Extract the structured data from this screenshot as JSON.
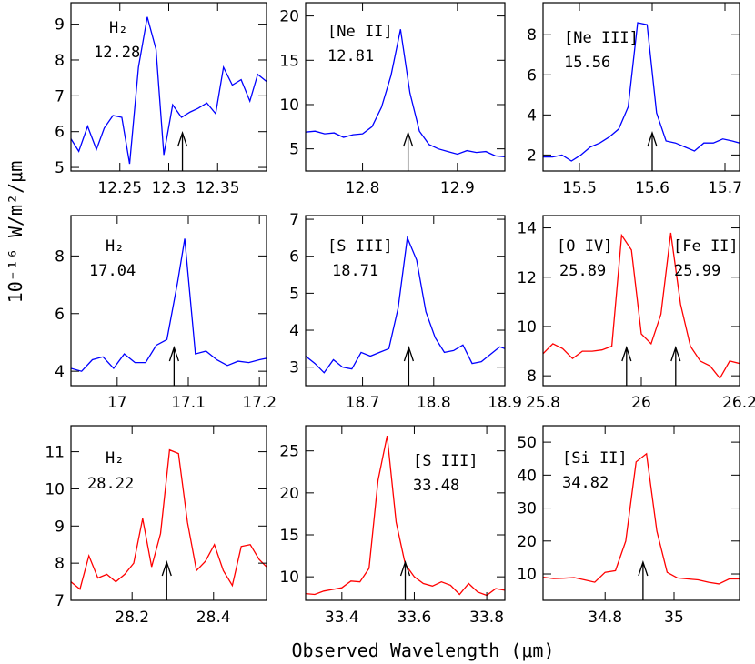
{
  "figure": {
    "xlabel": "Observed Wavelength (μm)",
    "ylabel": "10⁻¹⁶ W/m²/μm"
  },
  "chart_data": [
    {
      "type": "line",
      "color": "#0000ff",
      "labels": [
        {
          "text": "H₂"
        },
        {
          "text": "12.28"
        }
      ],
      "arrows": [
        12.314
      ],
      "xlim": [
        12.2,
        12.4
      ],
      "ylim": [
        4.9,
        9.6
      ],
      "xticks": [
        12.25,
        12.3,
        12.35
      ],
      "xtick_labels": [
        "12.25",
        "12.3",
        "12.35"
      ],
      "yticks": [
        5,
        6,
        7,
        8,
        9
      ],
      "ytick_labels": [
        "5",
        "6",
        "7",
        "8",
        "9"
      ],
      "x": [
        12.2,
        12.208,
        12.217,
        12.226,
        12.234,
        12.243,
        12.252,
        12.26,
        12.269,
        12.278,
        12.287,
        12.295,
        12.304,
        12.313,
        12.322,
        12.33,
        12.339,
        12.348,
        12.356,
        12.365,
        12.374,
        12.383,
        12.391,
        12.4
      ],
      "y": [
        5.8,
        5.45,
        6.15,
        5.5,
        6.1,
        6.45,
        6.4,
        5.1,
        7.8,
        9.2,
        8.3,
        5.35,
        6.75,
        6.4,
        6.55,
        6.65,
        6.8,
        6.5,
        7.8,
        7.3,
        7.45,
        6.85,
        7.6,
        7.4
      ]
    },
    {
      "type": "line",
      "color": "#0000ff",
      "labels": [
        {
          "text": "[Ne II]"
        },
        {
          "text": "12.81"
        }
      ],
      "arrows": [
        12.848
      ],
      "xlim": [
        12.74,
        12.95
      ],
      "ylim": [
        2.5,
        21.5
      ],
      "xticks": [
        12.8,
        12.9
      ],
      "xtick_labels": [
        "12.8",
        "12.9"
      ],
      "yticks": [
        5,
        10,
        15,
        20
      ],
      "ytick_labels": [
        "5",
        "10",
        "15",
        "20"
      ],
      "x": [
        12.74,
        12.75,
        12.76,
        12.77,
        12.78,
        12.79,
        12.8,
        12.81,
        12.82,
        12.83,
        12.84,
        12.85,
        12.86,
        12.87,
        12.88,
        12.89,
        12.9,
        12.91,
        12.92,
        12.93,
        12.94,
        12.95
      ],
      "y": [
        6.9,
        7.0,
        6.7,
        6.8,
        6.3,
        6.6,
        6.7,
        7.5,
        9.7,
        13.3,
        18.5,
        11.3,
        7.0,
        5.5,
        5.0,
        4.7,
        4.4,
        4.8,
        4.6,
        4.7,
        4.2,
        4.1
      ]
    },
    {
      "type": "line",
      "color": "#0000ff",
      "labels": [
        {
          "text": "[Ne III]"
        },
        {
          "text": "15.56"
        }
      ],
      "arrows": [
        15.6
      ],
      "xlim": [
        15.45,
        15.72
      ],
      "ylim": [
        1.2,
        9.6
      ],
      "xticks": [
        15.5,
        15.6,
        15.7
      ],
      "xtick_labels": [
        "15.5",
        "15.6",
        "15.7"
      ],
      "yticks": [
        2,
        4,
        6,
        8
      ],
      "ytick_labels": [
        "2",
        "4",
        "6",
        "8"
      ],
      "x": [
        15.45,
        15.463,
        15.476,
        15.489,
        15.502,
        15.515,
        15.528,
        15.541,
        15.554,
        15.567,
        15.58,
        15.593,
        15.606,
        15.619,
        15.632,
        15.645,
        15.658,
        15.671,
        15.684,
        15.697,
        15.71,
        15.72
      ],
      "y": [
        1.9,
        1.9,
        2.0,
        1.7,
        2.0,
        2.4,
        2.6,
        2.9,
        3.3,
        4.4,
        8.6,
        8.5,
        4.1,
        2.7,
        2.6,
        2.4,
        2.2,
        2.6,
        2.6,
        2.8,
        2.7,
        2.6
      ]
    },
    {
      "type": "line",
      "color": "#0000ff",
      "labels": [
        {
          "text": "H₂"
        },
        {
          "text": "17.04"
        }
      ],
      "arrows": [
        17.08
      ],
      "xlim": [
        16.935,
        17.21
      ],
      "ylim": [
        3.5,
        9.4
      ],
      "xticks": [
        17.0,
        17.1,
        17.2
      ],
      "xtick_labels": [
        "17",
        "17.1",
        "17.2"
      ],
      "yticks": [
        4,
        6,
        8
      ],
      "ytick_labels": [
        "4",
        "6",
        "8"
      ],
      "x": [
        16.935,
        16.95,
        16.965,
        16.98,
        16.995,
        17.01,
        17.025,
        17.04,
        17.055,
        17.07,
        17.085,
        17.095,
        17.11,
        17.125,
        17.14,
        17.155,
        17.17,
        17.185,
        17.2,
        17.21
      ],
      "y": [
        4.1,
        4.0,
        4.4,
        4.5,
        4.1,
        4.6,
        4.3,
        4.3,
        4.9,
        5.1,
        7.1,
        8.6,
        4.6,
        4.7,
        4.4,
        4.2,
        4.35,
        4.3,
        4.4,
        4.45
      ]
    },
    {
      "type": "line",
      "color": "#0000ff",
      "labels": [
        {
          "text": "[S III]"
        },
        {
          "text": "18.71"
        }
      ],
      "arrows": [
        18.765
      ],
      "xlim": [
        18.62,
        18.9
      ],
      "ylim": [
        2.5,
        7.1
      ],
      "xticks": [
        18.7,
        18.8,
        18.9
      ],
      "xtick_labels": [
        "18.7",
        "18.8",
        "18.9"
      ],
      "yticks": [
        3,
        4,
        5,
        6,
        7
      ],
      "ytick_labels": [
        "3",
        "4",
        "5",
        "6",
        "7"
      ],
      "x": [
        18.62,
        18.633,
        18.646,
        18.659,
        18.672,
        18.685,
        18.698,
        18.711,
        18.724,
        18.737,
        18.75,
        18.763,
        18.776,
        18.789,
        18.802,
        18.815,
        18.828,
        18.841,
        18.854,
        18.867,
        18.88,
        18.893,
        18.9
      ],
      "y": [
        3.3,
        3.1,
        2.85,
        3.2,
        3.0,
        2.95,
        3.4,
        3.3,
        3.4,
        3.5,
        4.6,
        6.5,
        5.9,
        4.5,
        3.8,
        3.4,
        3.45,
        3.6,
        3.1,
        3.15,
        3.35,
        3.55,
        3.5
      ]
    },
    {
      "type": "line",
      "color": "#ff0000",
      "labels": [
        {
          "text": "[O IV]"
        },
        {
          "text": "25.89"
        },
        {
          "text": "[Fe II]"
        },
        {
          "text": "25.99"
        }
      ],
      "arrows": [
        25.97,
        26.07
      ],
      "xlim": [
        25.8,
        26.2
      ],
      "ylim": [
        7.6,
        14.5
      ],
      "xticks": [
        25.8,
        26.0,
        26.2
      ],
      "xtick_labels": [
        "25.8",
        "26",
        "26.2"
      ],
      "yticks": [
        8,
        10,
        12,
        14
      ],
      "ytick_labels": [
        "8",
        "10",
        "12",
        "14"
      ],
      "x": [
        25.8,
        25.82,
        25.84,
        25.86,
        25.88,
        25.9,
        25.92,
        25.94,
        25.96,
        25.98,
        26.0,
        26.02,
        26.04,
        26.06,
        26.08,
        26.1,
        26.12,
        26.14,
        26.16,
        26.18,
        26.2
      ],
      "y": [
        8.9,
        9.3,
        9.1,
        8.7,
        9.0,
        9.0,
        9.05,
        9.2,
        13.7,
        13.1,
        9.7,
        9.3,
        10.5,
        13.8,
        10.9,
        9.2,
        8.6,
        8.4,
        7.9,
        8.6,
        8.5
      ]
    },
    {
      "type": "line",
      "color": "#ff0000",
      "labels": [
        {
          "text": "H₂"
        },
        {
          "text": "28.22"
        }
      ],
      "arrows": [
        28.285
      ],
      "xlim": [
        28.05,
        28.53
      ],
      "ylim": [
        7.0,
        11.7
      ],
      "xticks": [
        28.2,
        28.4
      ],
      "xtick_labels": [
        "28.2",
        "28.4"
      ],
      "yticks": [
        7,
        8,
        9,
        10,
        11
      ],
      "ytick_labels": [
        "7",
        "8",
        "9",
        "10",
        "11"
      ],
      "x": [
        28.05,
        28.072,
        28.094,
        28.116,
        28.138,
        28.16,
        28.182,
        28.204,
        28.226,
        28.248,
        28.27,
        28.292,
        28.314,
        28.336,
        28.358,
        28.38,
        28.402,
        28.424,
        28.446,
        28.468,
        28.49,
        28.512,
        28.53
      ],
      "y": [
        7.5,
        7.3,
        8.2,
        7.6,
        7.7,
        7.5,
        7.7,
        8.0,
        9.2,
        7.9,
        8.8,
        11.05,
        10.95,
        9.1,
        7.8,
        8.05,
        8.5,
        7.8,
        7.4,
        8.45,
        8.5,
        8.1,
        7.9
      ]
    },
    {
      "type": "line",
      "color": "#ff0000",
      "labels": [
        {
          "text": "[S III]"
        },
        {
          "text": "33.48"
        }
      ],
      "arrows": [
        33.575
      ],
      "xlim": [
        33.3,
        33.85
      ],
      "ylim": [
        7.2,
        28.0
      ],
      "xticks": [
        33.4,
        33.6,
        33.8
      ],
      "xtick_labels": [
        "33.4",
        "33.6",
        "33.8"
      ],
      "yticks": [
        10,
        15,
        20,
        25
      ],
      "ytick_labels": [
        "10",
        "15",
        "20",
        "25"
      ],
      "x": [
        33.3,
        33.325,
        33.35,
        33.375,
        33.4,
        33.425,
        33.45,
        33.475,
        33.5,
        33.525,
        33.55,
        33.575,
        33.6,
        33.625,
        33.65,
        33.675,
        33.7,
        33.725,
        33.75,
        33.775,
        33.8,
        33.825,
        33.85
      ],
      "y": [
        8.0,
        7.9,
        8.3,
        8.5,
        8.7,
        9.5,
        9.4,
        11.0,
        21.5,
        26.8,
        16.5,
        11.5,
        10.0,
        9.2,
        8.9,
        9.4,
        9.0,
        7.9,
        9.2,
        8.2,
        7.8,
        8.6,
        8.4
      ]
    },
    {
      "type": "line",
      "color": "#ff0000",
      "labels": [
        {
          "text": "[Si II]"
        },
        {
          "text": "34.82"
        }
      ],
      "arrows": [
        34.91
      ],
      "xlim": [
        34.62,
        35.19
      ],
      "ylim": [
        2.0,
        55.0
      ],
      "xticks": [
        34.8,
        35.0
      ],
      "xtick_labels": [
        "34.8",
        "35"
      ],
      "yticks": [
        10,
        20,
        30,
        40,
        50
      ],
      "ytick_labels": [
        "10",
        "20",
        "30",
        "40",
        "50"
      ],
      "x": [
        34.62,
        34.65,
        34.68,
        34.71,
        34.74,
        34.77,
        34.8,
        34.83,
        34.86,
        34.89,
        34.92,
        34.95,
        34.98,
        35.01,
        35.04,
        35.07,
        35.1,
        35.13,
        35.16,
        35.19
      ],
      "y": [
        9.0,
        8.6,
        8.7,
        8.9,
        8.2,
        7.5,
        10.5,
        11.0,
        20.0,
        44.0,
        46.5,
        23.0,
        10.5,
        8.8,
        8.5,
        8.2,
        7.5,
        7.0,
        8.5,
        8.5
      ]
    }
  ]
}
